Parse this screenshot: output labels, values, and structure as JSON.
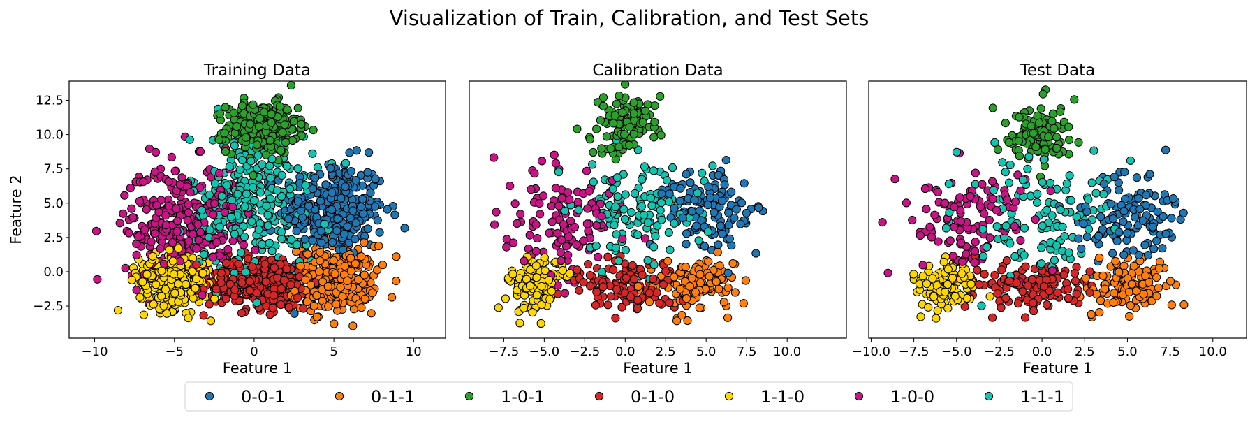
{
  "chart_data": {
    "type": "scatter",
    "title": "Visualization of Train, Calibration, and Test Sets",
    "legend": {
      "placement": "bottom-center",
      "entries": [
        "0-0-1",
        "0-1-1",
        "1-0-1",
        "0-1-0",
        "1-1-0",
        "1-0-0",
        "1-1-1"
      ]
    },
    "series_colors": {
      "0-0-1": "#1f77b4",
      "0-1-1": "#ff7f0e",
      "1-0-1": "#2ca02c",
      "0-1-0": "#d62728",
      "1-1-0": "#ffd700",
      "1-0-0": "#c71585",
      "1-1-1": "#14c4b0"
    },
    "marker_edge_color": "#000000",
    "grid": false,
    "shared_y": true,
    "panels": [
      {
        "title": "Training Data",
        "xlabel": "Feature 1",
        "ylabel": "Feature 2",
        "xlim": [
          -11.6,
          12.0
        ],
        "ylim": [
          -4.84,
          13.9
        ],
        "xticks": [
          "−10",
          "−5",
          "0",
          "5",
          "10"
        ],
        "xtick_values": [
          -10,
          -5,
          0,
          5,
          10
        ],
        "yticks": [
          "−2.5",
          "0.0",
          "2.5",
          "5.0",
          "7.5",
          "10.0",
          "12.5"
        ],
        "ytick_values": [
          -2.5,
          0,
          2.5,
          5,
          7.5,
          10,
          12.5
        ],
        "clusters": [
          {
            "name": "0-0-1",
            "center": [
              5.0,
              4.5
            ],
            "spread": [
              1.6,
              1.8
            ],
            "n": 300
          },
          {
            "name": "0-1-1",
            "center": [
              5.0,
              -0.5
            ],
            "spread": [
              1.3,
              1.2
            ],
            "n": 300
          },
          {
            "name": "1-0-1",
            "center": [
              0.5,
              10.5
            ],
            "spread": [
              1.1,
              0.9
            ],
            "n": 300
          },
          {
            "name": "0-1-0",
            "center": [
              0.5,
              -0.8
            ],
            "spread": [
              1.8,
              1.0
            ],
            "n": 300
          },
          {
            "name": "1-1-0",
            "center": [
              -5.0,
              -0.7
            ],
            "spread": [
              1.1,
              1.0
            ],
            "n": 300
          },
          {
            "name": "1-0-0",
            "center": [
              -4.5,
              3.5
            ],
            "spread": [
              1.8,
              2.2
            ],
            "n": 300
          },
          {
            "name": "1-1-1",
            "center": [
              0.0,
              5.0
            ],
            "spread": [
              2.0,
              2.5
            ],
            "n": 300
          }
        ]
      },
      {
        "title": "Calibration Data",
        "xlabel": "Feature 1",
        "xlim": [
          -9.63,
          13.66
        ],
        "ylim": [
          -4.84,
          13.9
        ],
        "xticks": [
          "−7.5",
          "−5.0",
          "−2.5",
          "0.0",
          "2.5",
          "5.0",
          "7.5",
          "10.0"
        ],
        "xtick_values": [
          -7.5,
          -5,
          -2.5,
          0,
          2.5,
          5,
          7.5,
          10
        ],
        "clusters": [
          {
            "name": "0-0-1",
            "center": [
              5.0,
              4.5
            ],
            "spread": [
              1.5,
              1.6
            ],
            "n": 120
          },
          {
            "name": "0-1-1",
            "center": [
              4.5,
              -1.0
            ],
            "spread": [
              1.3,
              1.0
            ],
            "n": 120
          },
          {
            "name": "1-0-1",
            "center": [
              0.0,
              10.8
            ],
            "spread": [
              0.9,
              1.0
            ],
            "n": 120
          },
          {
            "name": "0-1-0",
            "center": [
              0.0,
              -1.0
            ],
            "spread": [
              1.8,
              1.0
            ],
            "n": 120
          },
          {
            "name": "1-1-0",
            "center": [
              -5.5,
              -1.0
            ],
            "spread": [
              0.9,
              0.9
            ],
            "n": 120
          },
          {
            "name": "1-0-0",
            "center": [
              -4.0,
              4.0
            ],
            "spread": [
              1.8,
              2.0
            ],
            "n": 120
          },
          {
            "name": "1-1-1",
            "center": [
              0.5,
              4.5
            ],
            "spread": [
              2.0,
              2.0
            ],
            "n": 120
          }
        ]
      },
      {
        "title": "Test Data",
        "xlabel": "Feature 1",
        "xlim": [
          -10.14,
          11.97
        ],
        "ylim": [
          -4.84,
          13.9
        ],
        "xticks": [
          "−10.0",
          "−7.5",
          "−5.0",
          "−2.5",
          "0.0",
          "2.5",
          "5.0",
          "7.5",
          "10.0"
        ],
        "xtick_values": [
          -10,
          -7.5,
          -5,
          -2.5,
          0,
          2.5,
          5,
          7.5,
          10
        ],
        "clusters": [
          {
            "name": "0-0-1",
            "center": [
              5.0,
              4.0
            ],
            "spread": [
              1.5,
              1.6
            ],
            "n": 120
          },
          {
            "name": "0-1-1",
            "center": [
              5.0,
              -1.0
            ],
            "spread": [
              1.2,
              1.0
            ],
            "n": 120
          },
          {
            "name": "1-0-1",
            "center": [
              -0.3,
              10.0
            ],
            "spread": [
              0.9,
              1.0
            ],
            "n": 120
          },
          {
            "name": "0-1-0",
            "center": [
              -0.5,
              -1.0
            ],
            "spread": [
              1.8,
              0.9
            ],
            "n": 120
          },
          {
            "name": "1-1-0",
            "center": [
              -5.5,
              -1.0
            ],
            "spread": [
              0.8,
              0.9
            ],
            "n": 120
          },
          {
            "name": "1-0-0",
            "center": [
              -4.0,
              4.0
            ],
            "spread": [
              1.8,
              2.0
            ],
            "n": 120
          },
          {
            "name": "1-1-1",
            "center": [
              0.0,
              4.0
            ],
            "spread": [
              2.0,
              2.2
            ],
            "n": 120
          }
        ]
      }
    ]
  }
}
